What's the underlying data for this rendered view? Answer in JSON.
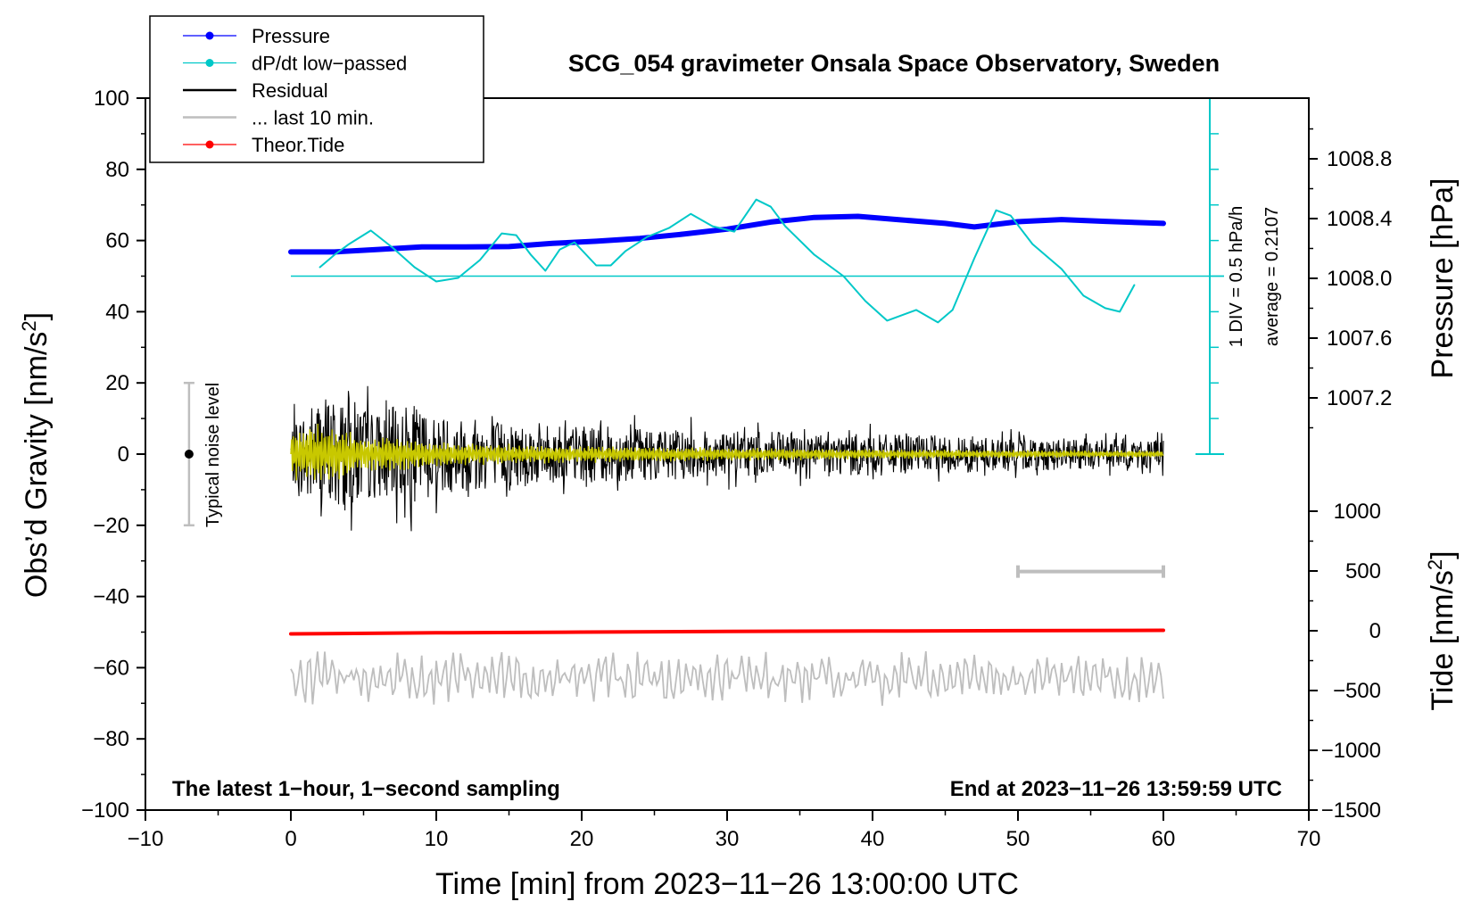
{
  "chart_data": {
    "type": "line",
    "title": "SCG_054 gravimeter Onsala Space Observatory, Sweden",
    "xlabel": "Time [min] from 2023−11−26 13:00:00 UTC",
    "ylabel": "Obs’d Gravity [nm/s²]",
    "ylabel_main": "Obs’d Gravity [nm/s",
    "ylabel_sup": "2",
    "ylabel_end": "]",
    "y2label": "Pressure [hPa]",
    "y3label_main": "Tide [nm/s",
    "y3label_sup": "2",
    "y3label_end": "]",
    "xlim": [
      -10,
      70
    ],
    "ylim": [
      -100,
      100
    ],
    "x_ticks": [
      -10,
      0,
      10,
      20,
      30,
      40,
      50,
      60,
      70
    ],
    "x_tick_labels": [
      "−10",
      "0",
      "10",
      "20",
      "30",
      "40",
      "50",
      "60",
      "70"
    ],
    "y_ticks": [
      -100,
      -80,
      -60,
      -40,
      -20,
      0,
      20,
      40,
      60,
      80,
      100
    ],
    "y_tick_labels": [
      "−100",
      "−80",
      "−60",
      "−40",
      "−20",
      "0",
      "20",
      "40",
      "60",
      "80",
      "100"
    ],
    "pressure_ticks": [
      1007.2,
      1007.6,
      1008.0,
      1008.4,
      1008.8
    ],
    "pressure_tick_labels": [
      "1007.2",
      "1007.6",
      "1008.0",
      "1008.4",
      "1008.8"
    ],
    "tide_ticks": [
      -1500,
      -1000,
      -500,
      0,
      500,
      1000
    ],
    "tide_tick_labels": [
      "−1500",
      "−1000",
      "−500",
      "0",
      "500",
      "1000"
    ],
    "legend": [
      {
        "label": "Pressure",
        "color": "#0000ff",
        "marker": true
      },
      {
        "label": "dP/dt low−passed",
        "color": "#00c8c8",
        "marker": true
      },
      {
        "label": "Residual",
        "color": "#000000",
        "marker": false
      },
      {
        "label": "... last 10 min.",
        "color": "#bebebe",
        "marker": false
      },
      {
        "label": "Theor.Tide",
        "color": "#ff0000",
        "marker": true
      }
    ],
    "legend_position": "top-left",
    "series": [
      {
        "name": "Pressure",
        "axis": "y_gravity_units",
        "color": "#0000ff",
        "x": [
          0,
          3,
          6,
          9,
          12,
          15,
          18,
          21,
          24,
          27,
          30,
          33,
          36,
          39,
          42,
          45,
          47,
          50,
          53,
          56,
          60
        ],
        "y": [
          56.8,
          56.8,
          57.5,
          58.2,
          58.2,
          58.3,
          59.2,
          59.8,
          60.6,
          61.8,
          63.2,
          65.2,
          66.5,
          66.8,
          65.8,
          64.8,
          63.8,
          65.3,
          65.9,
          65.4,
          64.8
        ]
      },
      {
        "name": "dP/dt low−passed",
        "axis": "y_gravity_units",
        "color": "#00c8c8",
        "x": [
          2,
          3,
          4,
          5.5,
          7,
          8.5,
          10,
          11.5,
          13,
          14.5,
          15.5,
          16.5,
          17.5,
          18.5,
          19.5,
          21,
          22,
          23,
          24.5,
          26,
          27.5,
          29,
          30.5,
          32,
          33,
          34,
          36,
          38,
          39.5,
          41,
          43,
          44.5,
          45.5,
          47,
          48.5,
          49.5,
          51,
          53,
          54.5,
          56,
          57,
          58
        ],
        "y": [
          52.5,
          56,
          59,
          62.8,
          58,
          52.5,
          48.5,
          49.5,
          54.5,
          62,
          61.5,
          56,
          51.5,
          57.5,
          59.5,
          53,
          53,
          57,
          61,
          63.5,
          67.5,
          64,
          62.5,
          71.5,
          69.5,
          64,
          56,
          50,
          43,
          37.5,
          40.5,
          37,
          40.5,
          55,
          68.5,
          67,
          59,
          52,
          44.5,
          41,
          40,
          47.5
        ]
      },
      {
        "name": "Residual",
        "axis": "y_gravity",
        "color": "#000000",
        "x_range": [
          0,
          60
        ],
        "envelope_x": [
          0,
          2,
          4,
          6,
          8,
          10,
          14,
          20,
          30,
          40,
          50,
          60
        ],
        "envelope_y": [
          10,
          22,
          20,
          15,
          18,
          14,
          12,
          10,
          8,
          7,
          6,
          5
        ]
      },
      {
        "name": "Residual (smoothed)",
        "axis": "y_gravity",
        "color": "#c8c800",
        "x_range": [
          0,
          60
        ],
        "envelope_x": [
          0,
          1.5,
          3,
          5,
          7,
          10,
          20,
          30,
          40,
          50,
          60
        ],
        "envelope_y": [
          7,
          10,
          8,
          5,
          5,
          3.5,
          2.5,
          2,
          1.5,
          1.2,
          1
        ]
      },
      {
        "name": "... last 10 min.",
        "axis": "y_gravity",
        "color": "#bebebe",
        "x_range": [
          0,
          60
        ],
        "center": -63,
        "amplitude": 7
      },
      {
        "name": "Theor.Tide",
        "axis": "y_gravity",
        "color": "#ff0000",
        "x": [
          0,
          10,
          20,
          30,
          40,
          50,
          60
        ],
        "y": [
          -50.5,
          -50.2,
          -50,
          -49.8,
          -49.7,
          -49.6,
          -49.5
        ]
      }
    ],
    "dpdt_baseline": 50,
    "dpdt_scale_text": "1 DIV = 0.5 hPa/h",
    "dpdt_average_text": "average = 0.2107",
    "noise_label": "Typical noise level",
    "noise_range": [
      -20,
      20
    ],
    "noise_x": -7,
    "last10_bar": [
      50,
      60
    ],
    "last10_bar_y": -33,
    "footer_left": "The latest 1−hour, 1−second sampling",
    "footer_right": "End at 2023−11−26 13:59:59 UTC"
  },
  "colors": {
    "pressure": "#0000ff",
    "dpdt": "#00c8c8",
    "residual": "#000000",
    "residual_smooth": "#c8c800",
    "last10": "#bebebe",
    "tide": "#ff0000"
  }
}
